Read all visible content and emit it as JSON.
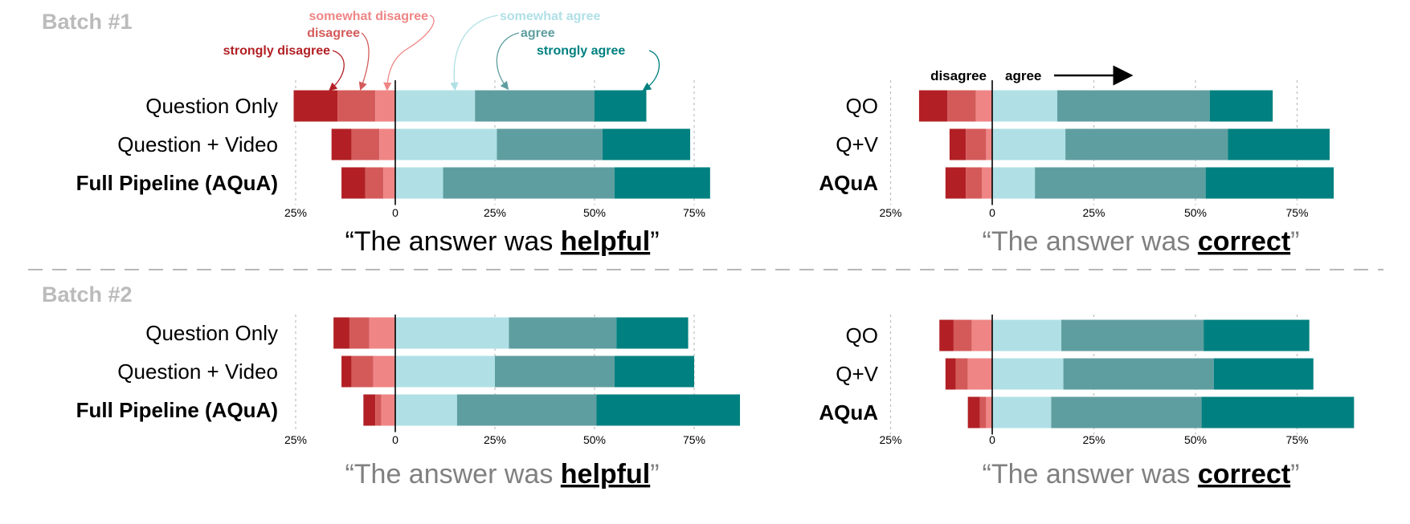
{
  "colors": {
    "strongly_disagree": "#b22025",
    "disagree": "#d45a5a",
    "somewhat_disagree": "#ef8585",
    "somewhat_agree": "#b0e0e6",
    "agree": "#5f9ea0",
    "strongly_agree": "#008080",
    "batch_label": "#bbbbbb",
    "subtitle_gray": "#808080"
  },
  "legend": {
    "strongly_disagree": "strongly disagree",
    "disagree": "disagree",
    "somewhat_disagree": "somewhat disagree",
    "somewhat_agree": "somewhat agree",
    "agree": "agree",
    "strongly_agree": "strongly agree"
  },
  "direction": {
    "disagree": "disagree",
    "agree": "agree"
  },
  "batches": [
    {
      "label": "Batch #1"
    },
    {
      "label": "Batch #2"
    }
  ],
  "category_order": [
    "strongly_disagree",
    "disagree",
    "somewhat_disagree",
    "somewhat_agree",
    "agree",
    "strongly_agree"
  ],
  "chart_data": [
    {
      "type": "bar",
      "orientation": "horizontal",
      "stacked": "diverging",
      "batch": "Batch #1",
      "title": {
        "pre": "“The answer was ",
        "key": "helpful",
        "post": "”",
        "style": "dark"
      },
      "categories": [
        "Question Only",
        "Question + Video",
        "Full Pipeline (AQuA)"
      ],
      "bold_category": "Full Pipeline (AQuA)",
      "series": [
        {
          "name": "strongly disagree",
          "values": [
            11,
            5,
            6
          ]
        },
        {
          "name": "disagree",
          "values": [
            9.5,
            7,
            4.5
          ]
        },
        {
          "name": "somewhat disagree",
          "values": [
            5,
            4,
            3
          ]
        },
        {
          "name": "somewhat agree",
          "values": [
            20,
            25.5,
            12
          ]
        },
        {
          "name": "agree",
          "values": [
            30,
            26.5,
            43
          ]
        },
        {
          "name": "strongly agree",
          "values": [
            13,
            22,
            24
          ]
        }
      ],
      "ticks": [
        "25%",
        "0",
        "25%",
        "50%",
        "75%"
      ]
    },
    {
      "type": "bar",
      "orientation": "horizontal",
      "stacked": "diverging",
      "batch": "Batch #1",
      "title": {
        "pre": "“The answer was ",
        "key": "correct",
        "post": "”",
        "style": "gray"
      },
      "categories": [
        "QO",
        "Q+V",
        "AQuA"
      ],
      "bold_category": "AQuA",
      "series": [
        {
          "name": "strongly disagree",
          "values": [
            7,
            4,
            5
          ]
        },
        {
          "name": "disagree",
          "values": [
            7,
            5,
            4
          ]
        },
        {
          "name": "somewhat disagree",
          "values": [
            4,
            1.5,
            2.5
          ]
        },
        {
          "name": "somewhat agree",
          "values": [
            16,
            18,
            10.5
          ]
        },
        {
          "name": "agree",
          "values": [
            37.5,
            40,
            42
          ]
        },
        {
          "name": "strongly agree",
          "values": [
            15.5,
            25,
            31.5
          ]
        }
      ],
      "ticks": [
        "25%",
        "0",
        "25%",
        "50%",
        "75%"
      ]
    },
    {
      "type": "bar",
      "orientation": "horizontal",
      "stacked": "diverging",
      "batch": "Batch #2",
      "title": {
        "pre": "“The answer was ",
        "key": "helpful",
        "post": "”",
        "style": "gray"
      },
      "categories": [
        "Question Only",
        "Question + Video",
        "Full Pipeline (AQuA)"
      ],
      "bold_category": "Full Pipeline (AQuA)",
      "series": [
        {
          "name": "strongly disagree",
          "values": [
            4,
            2.5,
            3
          ]
        },
        {
          "name": "disagree",
          "values": [
            5,
            5.5,
            1.5
          ]
        },
        {
          "name": "somewhat disagree",
          "values": [
            6.5,
            5.5,
            3.5
          ]
        },
        {
          "name": "somewhat agree",
          "values": [
            28.5,
            25,
            15.5
          ]
        },
        {
          "name": "agree",
          "values": [
            27,
            30,
            35
          ]
        },
        {
          "name": "strongly agree",
          "values": [
            18,
            20,
            36
          ]
        }
      ],
      "ticks": [
        "25%",
        "0",
        "25%",
        "50%",
        "75%"
      ]
    },
    {
      "type": "bar",
      "orientation": "horizontal",
      "stacked": "diverging",
      "batch": "Batch #2",
      "title": {
        "pre": "“The answer was ",
        "key": "correct",
        "post": "”",
        "style": "gray"
      },
      "categories": [
        "QO",
        "Q+V",
        "AQuA"
      ],
      "bold_category": "AQuA",
      "series": [
        {
          "name": "strongly disagree",
          "values": [
            3.5,
            2.5,
            3
          ]
        },
        {
          "name": "disagree",
          "values": [
            4.5,
            3,
            1.5
          ]
        },
        {
          "name": "somewhat disagree",
          "values": [
            5,
            6,
            1.5
          ]
        },
        {
          "name": "somewhat agree",
          "values": [
            17,
            17.5,
            14.5
          ]
        },
        {
          "name": "agree",
          "values": [
            35,
            37,
            37
          ]
        },
        {
          "name": "strongly agree",
          "values": [
            26,
            24.5,
            37.5
          ]
        }
      ],
      "ticks": [
        "25%",
        "0",
        "25%",
        "50%",
        "75%"
      ]
    }
  ]
}
